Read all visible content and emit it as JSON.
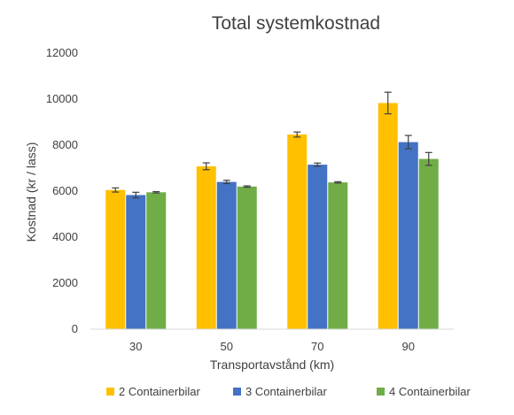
{
  "chart_data": {
    "type": "bar",
    "title": "Total systemkostnad",
    "xlabel": "Transportavstånd (km)",
    "ylabel": "Kostnad (kr / lass)",
    "categories": [
      "30",
      "50",
      "70",
      "90"
    ],
    "ylim": [
      0,
      12000
    ],
    "yticks": [
      0,
      2000,
      4000,
      6000,
      8000,
      10000,
      12000
    ],
    "grid": false,
    "legend": "bottom",
    "series": [
      {
        "name": "2 Containerbilar",
        "color": "#FFC000",
        "values": [
          6050,
          7080,
          8460,
          9830
        ],
        "errors": [
          90,
          150,
          110,
          470
        ]
      },
      {
        "name": "3 Containerbilar",
        "color": "#4472C4",
        "values": [
          5830,
          6400,
          7150,
          8130
        ],
        "errors": [
          120,
          70,
          70,
          290
        ]
      },
      {
        "name": "4 Containerbilar",
        "color": "#70AD47",
        "values": [
          5950,
          6200,
          6380,
          7400
        ],
        "errors": [
          30,
          30,
          30,
          280
        ]
      }
    ]
  }
}
